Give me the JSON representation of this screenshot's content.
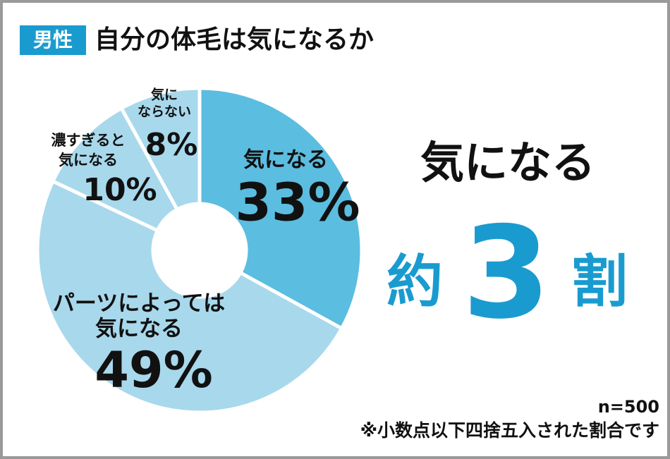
{
  "chart_data": {
    "type": "pie",
    "tag": "男性",
    "title": "自分の体毛は気になるか",
    "categories": [
      [
        "気になる"
      ],
      [
        "パーツによっては",
        "気になる"
      ],
      [
        "濃すぎると",
        "気になる"
      ],
      [
        "気に",
        "ならない"
      ]
    ],
    "values": [
      33,
      49,
      10,
      8
    ],
    "value_labels": [
      "33%",
      "49%",
      "10%",
      "8%"
    ],
    "colors": [
      "#5bbde0",
      "#a8d8ec",
      "#a8d8ec",
      "#a8d8ec"
    ],
    "donut": true,
    "callout": {
      "label": "気になる",
      "prefix": "約",
      "number": 3,
      "suffix": "割"
    },
    "sample": "n=500",
    "note": "※小数点以下四捨五入された割合です"
  }
}
